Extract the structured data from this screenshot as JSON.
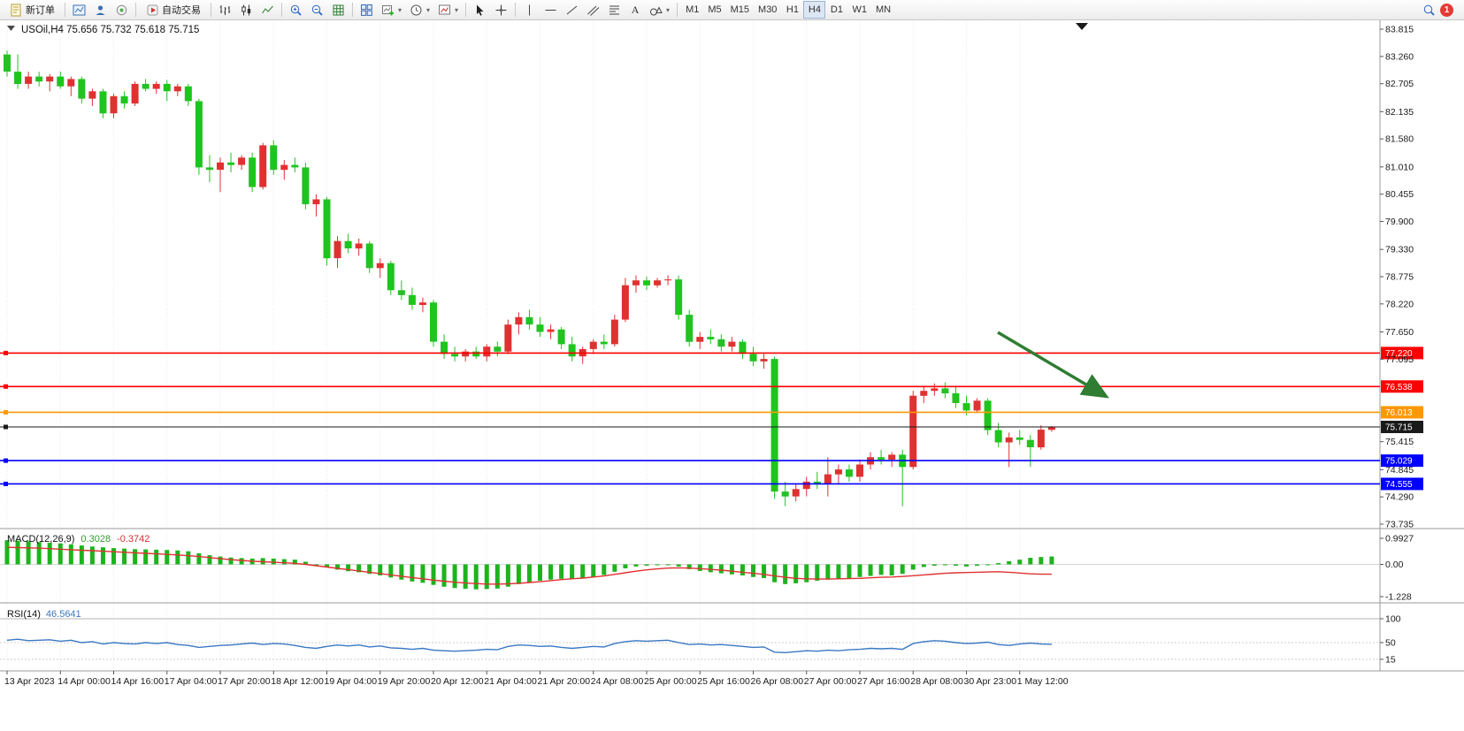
{
  "toolbar": {
    "new_order_label": "新订单",
    "auto_trading_label": "自动交易",
    "timeframes": [
      "M1",
      "M5",
      "M15",
      "M30",
      "H1",
      "H4",
      "D1",
      "W1",
      "MN"
    ],
    "active_timeframe": "H4",
    "notification_count": "1",
    "text_tool_label": "A"
  },
  "chart": {
    "title": "USOil,H4 75.656 75.732 75.618 75.715",
    "symbol": "USOil",
    "period": "H4",
    "ohlc": {
      "open": "75.656",
      "high": "75.732",
      "low": "75.618",
      "close": "75.715"
    },
    "price_range": {
      "max": 83.815,
      "min": 73.735
    },
    "price_axis_labels": [
      "83.815",
      "83.260",
      "82.705",
      "82.135",
      "81.580",
      "81.010",
      "80.455",
      "79.900",
      "79.330",
      "78.775",
      "78.220",
      "77.650",
      "77.095",
      "75.415",
      "74.845",
      "74.290",
      "73.735"
    ],
    "time_axis_labels": [
      "13 Apr 2023",
      "14 Apr 00:00",
      "14 Apr 16:00",
      "17 Apr 04:00",
      "17 Apr 20:00",
      "18 Apr 12:00",
      "19 Apr 04:00",
      "19 Apr 20:00",
      "20 Apr 12:00",
      "21 Apr 04:00",
      "21 Apr 20:00",
      "24 Apr 08:00",
      "25 Apr 00:00",
      "25 Apr 16:00",
      "26 Apr 08:00",
      "27 Apr 00:00",
      "27 Apr 16:00",
      "28 Apr 08:00",
      "30 Apr 23:00",
      "1 May 12:00"
    ],
    "horizontal_lines": [
      {
        "price": 77.22,
        "label": "77.220",
        "color": "#ff0000",
        "type": "level"
      },
      {
        "price": 76.538,
        "label": "76.538",
        "color": "#ff0000",
        "type": "level"
      },
      {
        "price": 76.013,
        "label": "76.013",
        "color": "#ff9800",
        "type": "level"
      },
      {
        "price": 75.715,
        "label": "75.715",
        "color": "#1a1a1a",
        "type": "current"
      },
      {
        "price": 75.029,
        "label": "75.029",
        "color": "#0000ff",
        "type": "level"
      },
      {
        "price": 74.555,
        "label": "74.555",
        "color": "#0000ff",
        "type": "level"
      }
    ],
    "arrow_annotation": {
      "color": "#2e7d32",
      "direction": "down-right"
    }
  },
  "chart_data": {
    "type": "candlestick",
    "symbol": "USOil",
    "timeframe": "H4",
    "up_color": "#e03131",
    "down_color": "#1fc41f",
    "macd_color": "#1db31d",
    "signal_color": "#e03131",
    "rsi_color": "#3a78c3",
    "candles": [
      [
        83.3,
        83.38,
        82.85,
        82.95
      ],
      [
        82.95,
        83.3,
        82.6,
        82.7
      ],
      [
        82.7,
        82.95,
        82.6,
        82.85
      ],
      [
        82.85,
        82.95,
        82.65,
        82.75
      ],
      [
        82.75,
        82.9,
        82.55,
        82.85
      ],
      [
        82.85,
        82.95,
        82.6,
        82.65
      ],
      [
        82.65,
        82.85,
        82.45,
        82.8
      ],
      [
        82.8,
        82.85,
        82.3,
        82.4
      ],
      [
        82.4,
        82.6,
        82.25,
        82.55
      ],
      [
        82.55,
        82.6,
        82.0,
        82.1
      ],
      [
        82.1,
        82.5,
        82.0,
        82.45
      ],
      [
        82.45,
        82.55,
        82.2,
        82.3
      ],
      [
        82.3,
        82.75,
        82.25,
        82.7
      ],
      [
        82.7,
        82.8,
        82.55,
        82.6
      ],
      [
        82.6,
        82.75,
        82.5,
        82.7
      ],
      [
        82.7,
        82.78,
        82.35,
        82.55
      ],
      [
        82.55,
        82.7,
        82.45,
        82.65
      ],
      [
        82.65,
        82.7,
        82.25,
        82.35
      ],
      [
        82.35,
        82.4,
        80.85,
        81.0
      ],
      [
        81.0,
        81.25,
        80.7,
        80.95
      ],
      [
        80.95,
        81.2,
        80.5,
        81.1
      ],
      [
        81.1,
        81.3,
        80.9,
        81.05
      ],
      [
        81.05,
        81.25,
        80.95,
        81.2
      ],
      [
        81.2,
        81.3,
        80.5,
        80.6
      ],
      [
        80.6,
        81.5,
        80.55,
        81.45
      ],
      [
        81.45,
        81.55,
        80.85,
        80.95
      ],
      [
        80.95,
        81.15,
        80.75,
        81.05
      ],
      [
        81.05,
        81.2,
        80.9,
        81.0
      ],
      [
        81.0,
        81.1,
        80.15,
        80.25
      ],
      [
        80.25,
        80.45,
        80.0,
        80.35
      ],
      [
        80.35,
        80.4,
        79.0,
        79.15
      ],
      [
        79.15,
        79.6,
        78.95,
        79.5
      ],
      [
        79.5,
        79.65,
        79.25,
        79.35
      ],
      [
        79.35,
        79.55,
        79.2,
        79.45
      ],
      [
        79.45,
        79.5,
        78.85,
        78.95
      ],
      [
        78.95,
        79.15,
        78.75,
        79.05
      ],
      [
        79.05,
        79.1,
        78.4,
        78.5
      ],
      [
        78.5,
        78.7,
        78.3,
        78.4
      ],
      [
        78.4,
        78.55,
        78.1,
        78.2
      ],
      [
        78.2,
        78.35,
        78.05,
        78.25
      ],
      [
        78.25,
        78.3,
        77.35,
        77.45
      ],
      [
        77.45,
        77.6,
        77.1,
        77.2
      ],
      [
        77.2,
        77.35,
        77.05,
        77.15
      ],
      [
        77.15,
        77.3,
        77.05,
        77.25
      ],
      [
        77.25,
        77.35,
        77.1,
        77.15
      ],
      [
        77.15,
        77.4,
        77.05,
        77.35
      ],
      [
        77.35,
        77.45,
        77.15,
        77.25
      ],
      [
        77.25,
        77.9,
        77.2,
        77.8
      ],
      [
        77.8,
        78.05,
        77.6,
        77.95
      ],
      [
        77.95,
        78.1,
        77.7,
        77.8
      ],
      [
        77.8,
        77.95,
        77.55,
        77.65
      ],
      [
        77.65,
        77.8,
        77.5,
        77.7
      ],
      [
        77.7,
        77.75,
        77.3,
        77.4
      ],
      [
        77.4,
        77.55,
        77.05,
        77.15
      ],
      [
        77.15,
        77.35,
        77.0,
        77.3
      ],
      [
        77.3,
        77.5,
        77.2,
        77.45
      ],
      [
        77.45,
        77.6,
        77.3,
        77.4
      ],
      [
        77.4,
        78.0,
        77.35,
        77.9
      ],
      [
        77.9,
        78.75,
        77.85,
        78.6
      ],
      [
        78.6,
        78.8,
        78.45,
        78.7
      ],
      [
        78.7,
        78.78,
        78.5,
        78.6
      ],
      [
        78.6,
        78.75,
        78.55,
        78.7
      ],
      [
        78.7,
        78.8,
        78.6,
        78.72
      ],
      [
        78.72,
        78.8,
        77.9,
        78.0
      ],
      [
        78.0,
        78.1,
        77.35,
        77.45
      ],
      [
        77.45,
        77.65,
        77.3,
        77.55
      ],
      [
        77.55,
        77.7,
        77.4,
        77.5
      ],
      [
        77.5,
        77.6,
        77.25,
        77.35
      ],
      [
        77.35,
        77.55,
        77.25,
        77.45
      ],
      [
        77.45,
        77.5,
        77.1,
        77.2
      ],
      [
        77.2,
        77.35,
        76.95,
        77.05
      ],
      [
        77.05,
        77.2,
        76.9,
        77.1
      ],
      [
        77.1,
        77.15,
        74.25,
        74.4
      ],
      [
        74.4,
        74.6,
        74.1,
        74.3
      ],
      [
        74.3,
        74.55,
        74.2,
        74.45
      ],
      [
        74.45,
        74.7,
        74.3,
        74.6
      ],
      [
        74.6,
        74.8,
        74.45,
        74.55
      ],
      [
        74.55,
        75.1,
        74.3,
        74.75
      ],
      [
        74.75,
        74.95,
        74.55,
        74.85
      ],
      [
        74.85,
        74.95,
        74.6,
        74.7
      ],
      [
        74.7,
        75.05,
        74.6,
        74.95
      ],
      [
        74.95,
        75.2,
        74.85,
        75.1
      ],
      [
        75.1,
        75.25,
        74.95,
        75.05
      ],
      [
        75.05,
        75.2,
        74.9,
        75.15
      ],
      [
        75.15,
        75.25,
        74.1,
        74.9
      ],
      [
        74.9,
        76.45,
        74.85,
        76.35
      ],
      [
        76.35,
        76.55,
        76.2,
        76.45
      ],
      [
        76.45,
        76.6,
        76.35,
        76.5
      ],
      [
        76.5,
        76.62,
        76.3,
        76.4
      ],
      [
        76.4,
        76.55,
        76.1,
        76.2
      ],
      [
        76.2,
        76.35,
        75.95,
        76.05
      ],
      [
        76.05,
        76.3,
        76.0,
        76.25
      ],
      [
        76.25,
        76.3,
        75.55,
        75.65
      ],
      [
        75.65,
        75.8,
        75.3,
        75.4
      ],
      [
        75.4,
        75.6,
        74.9,
        75.5
      ],
      [
        75.5,
        75.65,
        75.35,
        75.45
      ],
      [
        75.45,
        75.55,
        74.9,
        75.3
      ],
      [
        75.3,
        75.75,
        75.25,
        75.66
      ],
      [
        75.656,
        75.732,
        75.618,
        75.715
      ]
    ],
    "indicators": {
      "macd": {
        "label": "MACD(12,26,9)",
        "value_main": "0.3028",
        "value_signal": "-0.3742",
        "axis_labels": [
          "0.9927",
          "0.00",
          "-1.228"
        ],
        "histogram": [
          0.92,
          0.9,
          0.88,
          0.85,
          0.82,
          0.8,
          0.76,
          0.72,
          0.68,
          0.65,
          0.62,
          0.6,
          0.58,
          0.57,
          0.56,
          0.55,
          0.53,
          0.5,
          0.42,
          0.35,
          0.3,
          0.26,
          0.24,
          0.22,
          0.24,
          0.22,
          0.2,
          0.18,
          0.1,
          0.0,
          -0.12,
          -0.2,
          -0.26,
          -0.3,
          -0.36,
          -0.42,
          -0.5,
          -0.58,
          -0.65,
          -0.7,
          -0.78,
          -0.85,
          -0.9,
          -0.93,
          -0.95,
          -0.94,
          -0.92,
          -0.85,
          -0.75,
          -0.68,
          -0.62,
          -0.58,
          -0.55,
          -0.54,
          -0.52,
          -0.48,
          -0.4,
          -0.28,
          -0.15,
          -0.08,
          -0.05,
          -0.03,
          -0.02,
          -0.08,
          -0.18,
          -0.25,
          -0.3,
          -0.34,
          -0.38,
          -0.42,
          -0.48,
          -0.52,
          -0.68,
          -0.75,
          -0.72,
          -0.68,
          -0.62,
          -0.58,
          -0.55,
          -0.52,
          -0.48,
          -0.44,
          -0.4,
          -0.42,
          -0.36,
          -0.2,
          -0.1,
          -0.05,
          -0.02,
          -0.05,
          -0.08,
          -0.05,
          -0.02,
          0.05,
          0.12,
          0.18,
          0.25,
          0.28,
          0.3
        ],
        "signal": [
          0.65,
          0.64,
          0.63,
          0.62,
          0.6,
          0.58,
          0.56,
          0.54,
          0.52,
          0.5,
          0.48,
          0.46,
          0.44,
          0.42,
          0.4,
          0.38,
          0.36,
          0.33,
          0.3,
          0.26,
          0.22,
          0.18,
          0.15,
          0.12,
          0.1,
          0.08,
          0.06,
          0.04,
          0.0,
          -0.05,
          -0.1,
          -0.15,
          -0.2,
          -0.25,
          -0.3,
          -0.35,
          -0.4,
          -0.45,
          -0.5,
          -0.55,
          -0.6,
          -0.64,
          -0.68,
          -0.71,
          -0.73,
          -0.75,
          -0.75,
          -0.74,
          -0.72,
          -0.69,
          -0.66,
          -0.62,
          -0.58,
          -0.55,
          -0.52,
          -0.48,
          -0.44,
          -0.38,
          -0.32,
          -0.26,
          -0.21,
          -0.17,
          -0.14,
          -0.13,
          -0.14,
          -0.16,
          -0.19,
          -0.22,
          -0.26,
          -0.3,
          -0.34,
          -0.38,
          -0.44,
          -0.49,
          -0.53,
          -0.55,
          -0.56,
          -0.56,
          -0.55,
          -0.54,
          -0.53,
          -0.51,
          -0.49,
          -0.48,
          -0.46,
          -0.43,
          -0.4,
          -0.37,
          -0.34,
          -0.32,
          -0.31,
          -0.3,
          -0.29,
          -0.28,
          -0.3,
          -0.33,
          -0.36,
          -0.375,
          -0.3742
        ]
      },
      "rsi": {
        "label": "RSI(14)",
        "value_label": "46.5641",
        "axis_labels": [
          "100",
          "50",
          "15"
        ],
        "values": [
          55,
          57,
          54,
          55,
          56,
          53,
          55,
          50,
          52,
          47,
          50,
          48,
          47,
          50,
          48,
          50,
          46,
          44,
          40,
          42,
          44,
          45,
          47,
          49,
          46,
          48,
          47,
          44,
          40,
          38,
          42,
          45,
          43,
          45,
          41,
          43,
          39,
          38,
          36,
          38,
          34,
          33,
          32,
          33,
          34,
          36,
          35,
          42,
          45,
          44,
          42,
          43,
          40,
          38,
          40,
          42,
          41,
          48,
          52,
          54,
          53,
          54,
          55,
          50,
          46,
          47,
          45,
          46,
          44,
          42,
          40,
          41,
          30,
          29,
          31,
          33,
          32,
          34,
          33,
          35,
          36,
          38,
          37,
          38,
          36,
          48,
          52,
          54,
          53,
          50,
          48,
          49,
          51,
          46,
          44,
          47,
          49,
          47,
          46.56
        ]
      }
    }
  }
}
